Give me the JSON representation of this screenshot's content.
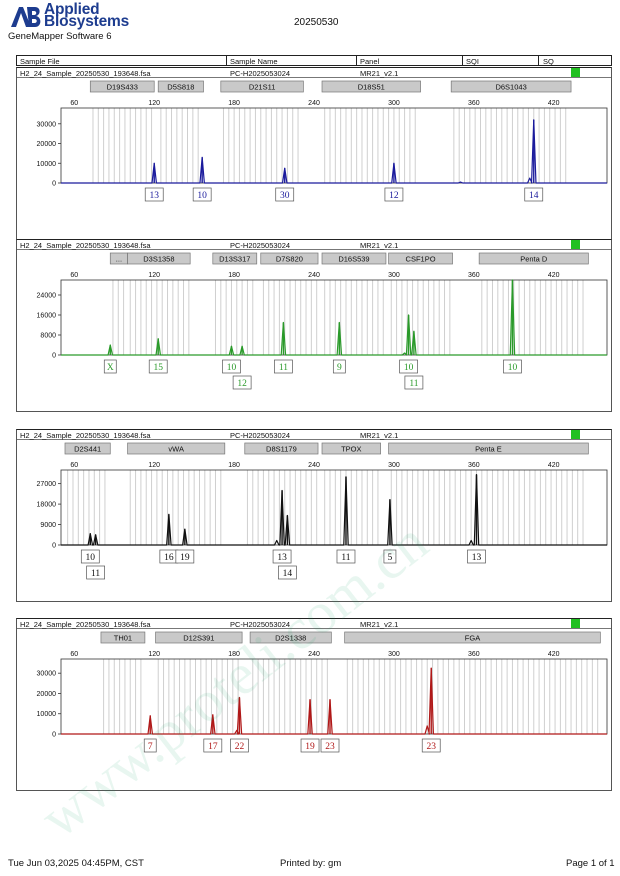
{
  "header": {
    "brand_line1": "Applied",
    "brand_line2": "Biosystems",
    "software": "GeneMapper Software 6",
    "run_date": "20250530"
  },
  "columns": {
    "sample_file": "Sample File",
    "sample_name": "Sample Name",
    "panel": "Panel",
    "sqi": "SQI",
    "sq": "SQ"
  },
  "footer": {
    "timestamp": "Tue Jun 03,2025 04:45PM, CST",
    "printed_by": "Printed by: gm",
    "page": "Page 1 of 1"
  },
  "watermark": "www.proteli.com.cn",
  "chart_data": [
    {
      "type": "line",
      "dye_color": "#1a1a9c",
      "sample_file": "H2_24_Sample_20250530_193648.fsa",
      "sample_name": "PC-H2025053024",
      "panel": "MR21_v2.1",
      "x_ticks": [
        60,
        120,
        180,
        240,
        300,
        360,
        420
      ],
      "xlim": [
        50,
        460
      ],
      "y_ticks": [
        0,
        10000,
        20000,
        30000
      ],
      "ylim": [
        0,
        38000
      ],
      "loci": [
        {
          "name": "D19S433",
          "start": 72,
          "end": 120
        },
        {
          "name": "D5S818",
          "start": 123,
          "end": 157
        },
        {
          "name": "D21S11",
          "start": 170,
          "end": 232
        },
        {
          "name": "D18S51",
          "start": 246,
          "end": 320
        },
        {
          "name": "D6S1043",
          "start": 343,
          "end": 433
        }
      ],
      "peaks": [
        {
          "x": 120,
          "y": 10000,
          "label": "13",
          "row": 0
        },
        {
          "x": 156,
          "y": 13000,
          "label": "10",
          "row": 0
        },
        {
          "x": 218,
          "y": 7500,
          "label": "30",
          "row": 0
        },
        {
          "x": 300,
          "y": 10000,
          "label": "12",
          "row": 0
        },
        {
          "x": 405,
          "y": 32000,
          "label": "14",
          "row": 0
        }
      ],
      "minor_peaks": [
        {
          "x": 402,
          "y": 2500
        },
        {
          "x": 350,
          "y": 500
        }
      ]
    },
    {
      "type": "line",
      "dye_color": "#2a9a2a",
      "sample_file": "H2_24_Sample_20250530_193648.fsa",
      "sample_name": "PC-H2025053024",
      "panel": "MR21_v2.1",
      "x_ticks": [
        60,
        120,
        180,
        240,
        300,
        360,
        420
      ],
      "xlim": [
        50,
        460
      ],
      "y_ticks": [
        0,
        8000,
        16000,
        24000
      ],
      "ylim": [
        0,
        30000
      ],
      "loci": [
        {
          "name": "...",
          "start": 87,
          "end": 100
        },
        {
          "name": "D3S1358",
          "start": 100,
          "end": 147
        },
        {
          "name": "D13S317",
          "start": 164,
          "end": 197
        },
        {
          "name": "D7S820",
          "start": 200,
          "end": 243
        },
        {
          "name": "D16S539",
          "start": 246,
          "end": 294
        },
        {
          "name": "CSF1PO",
          "start": 296,
          "end": 344
        },
        {
          "name": "Penta D",
          "start": 364,
          "end": 446
        }
      ],
      "peaks": [
        {
          "x": 87,
          "y": 4000,
          "label": "X",
          "row": 0
        },
        {
          "x": 123,
          "y": 6500,
          "label": "15",
          "row": 0
        },
        {
          "x": 178,
          "y": 3500,
          "label": "10",
          "row": 0
        },
        {
          "x": 186,
          "y": 3500,
          "label": "12",
          "row": 1
        },
        {
          "x": 217,
          "y": 13000,
          "label": "11",
          "row": 0
        },
        {
          "x": 259,
          "y": 13000,
          "label": "9",
          "row": 0
        },
        {
          "x": 311,
          "y": 16000,
          "label": "10",
          "row": 0
        },
        {
          "x": 315,
          "y": 9500,
          "label": "11",
          "row": 1
        },
        {
          "x": 389,
          "y": 30000,
          "label": "10",
          "row": 0
        }
      ],
      "minor_peaks": [
        {
          "x": 308,
          "y": 800
        }
      ]
    },
    {
      "type": "line",
      "dye_color": "#111111",
      "sample_file": "H2_24_Sample_20250530_193648.fsa",
      "sample_name": "PC-H2025053024",
      "panel": "MR21_v2.1",
      "x_ticks": [
        60,
        120,
        180,
        240,
        300,
        360,
        420
      ],
      "xlim": [
        50,
        460
      ],
      "y_ticks": [
        0,
        9000,
        18000,
        27000
      ],
      "ylim": [
        0,
        33000
      ],
      "loci": [
        {
          "name": "D2S441",
          "start": 53,
          "end": 87
        },
        {
          "name": "vWA",
          "start": 100,
          "end": 173
        },
        {
          "name": "D8S1179",
          "start": 188,
          "end": 243
        },
        {
          "name": "TPOX",
          "start": 246,
          "end": 290
        },
        {
          "name": "Penta E",
          "start": 296,
          "end": 446
        }
      ],
      "peaks": [
        {
          "x": 72,
          "y": 5000,
          "label": "10",
          "row": 0
        },
        {
          "x": 76,
          "y": 4500,
          "label": "11",
          "row": 1
        },
        {
          "x": 131,
          "y": 13500,
          "label": "16",
          "row": 0
        },
        {
          "x": 143,
          "y": 7000,
          "label": "19",
          "row": 0
        },
        {
          "x": 216,
          "y": 24000,
          "label": "13",
          "row": 0
        },
        {
          "x": 220,
          "y": 13000,
          "label": "14",
          "row": 1
        },
        {
          "x": 264,
          "y": 30000,
          "label": "11",
          "row": 0
        },
        {
          "x": 297,
          "y": 20000,
          "label": "5",
          "row": 0
        },
        {
          "x": 362,
          "y": 31000,
          "label": "13",
          "row": 0
        }
      ],
      "minor_peaks": [
        {
          "x": 212,
          "y": 2000
        },
        {
          "x": 358,
          "y": 2000
        }
      ]
    },
    {
      "type": "line",
      "dye_color": "#b01818",
      "sample_file": "H2_24_Sample_20250530_193648.fsa",
      "sample_name": "PC-H2025053024",
      "panel": "MR21_v2.1",
      "x_ticks": [
        60,
        120,
        180,
        240,
        300,
        360,
        420
      ],
      "xlim": [
        50,
        460
      ],
      "y_ticks": [
        0,
        10000,
        20000,
        30000
      ],
      "ylim": [
        0,
        37000
      ],
      "loci": [
        {
          "name": "TH01",
          "start": 80,
          "end": 113
        },
        {
          "name": "D12S391",
          "start": 121,
          "end": 186
        },
        {
          "name": "D2S1338",
          "start": 192,
          "end": 253
        },
        {
          "name": "FGA",
          "start": 263,
          "end": 455
        }
      ],
      "peaks": [
        {
          "x": 117,
          "y": 9000,
          "label": "7",
          "row": 0
        },
        {
          "x": 164,
          "y": 9500,
          "label": "17",
          "row": 0
        },
        {
          "x": 184,
          "y": 18000,
          "label": "22",
          "row": 0
        },
        {
          "x": 237,
          "y": 17000,
          "label": "19",
          "row": 0
        },
        {
          "x": 252,
          "y": 17000,
          "label": "23",
          "row": 0
        },
        {
          "x": 328,
          "y": 32500,
          "label": "23",
          "row": 0
        }
      ],
      "minor_peaks": [
        {
          "x": 325,
          "y": 4000
        },
        {
          "x": 182,
          "y": 1800
        }
      ]
    }
  ]
}
